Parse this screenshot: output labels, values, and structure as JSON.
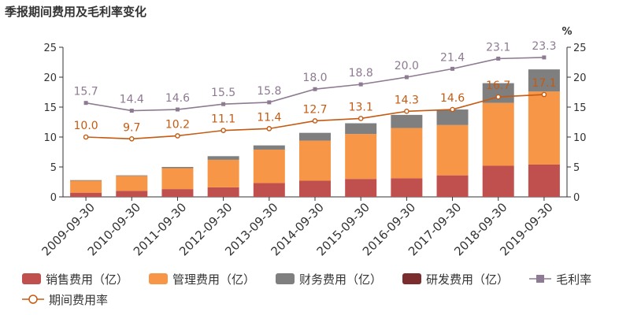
{
  "chart_data": {
    "type": "bar",
    "title": "季报期间费用及毛利率变化",
    "right_unit": "%",
    "categories": [
      "2009-09-30",
      "2010-09-30",
      "2011-09-30",
      "2012-09-30",
      "2013-09-30",
      "2014-09-30",
      "2015-09-30",
      "2016-09-30",
      "2017-09-30",
      "2018-09-30",
      "2019-09-30"
    ],
    "ylim": [
      0,
      25
    ],
    "y_ticks": [
      "0",
      "5",
      "10",
      "15",
      "20",
      "25"
    ],
    "y2lim": [
      0,
      25
    ],
    "y2_ticks": [
      "0",
      "5",
      "10",
      "15",
      "20",
      "25"
    ],
    "stacked_series": [
      {
        "name": "销售费用（亿）",
        "color": "#c0504d",
        "values": [
          0.7,
          1.0,
          1.3,
          1.6,
          2.3,
          2.7,
          3.0,
          3.1,
          3.6,
          5.2,
          5.4
        ]
      },
      {
        "name": "管理费用（亿）",
        "color": "#f79646",
        "values": [
          2.0,
          2.5,
          3.5,
          4.6,
          5.6,
          6.7,
          7.5,
          8.4,
          8.4,
          10.5,
          12.2
        ]
      },
      {
        "name": "财务费用（亿）",
        "color": "#7f7f7f",
        "values": [
          0.1,
          0.1,
          0.2,
          0.6,
          0.7,
          1.3,
          1.8,
          2.2,
          2.6,
          3.3,
          3.7
        ]
      },
      {
        "name": "研发费用（亿）",
        "color": "#7b2c2c",
        "values": [
          0,
          0,
          0,
          0,
          0,
          0,
          0,
          0,
          0,
          0,
          0
        ]
      }
    ],
    "line_series": [
      {
        "name": "毛利率",
        "color": "#8e7a92",
        "marker": "square",
        "values": [
          15.7,
          14.4,
          14.6,
          15.5,
          15.8,
          18.0,
          18.8,
          20.0,
          21.4,
          23.1,
          23.3
        ],
        "labels": [
          "15.7",
          "14.4",
          "14.6",
          "15.5",
          "15.8",
          "18.0",
          "18.8",
          "20.0",
          "21.4",
          "23.1",
          "23.3"
        ]
      },
      {
        "name": "期间费用率",
        "color": "#c55a11",
        "marker": "circle",
        "values": [
          10.0,
          9.7,
          10.2,
          11.1,
          11.4,
          12.7,
          13.1,
          14.3,
          14.6,
          16.7,
          17.1
        ],
        "labels": [
          "10.0",
          "9.7",
          "10.2",
          "11.1",
          "11.4",
          "12.7",
          "13.1",
          "14.3",
          "14.6",
          "16.7",
          "17.1"
        ]
      }
    ],
    "grid": false,
    "legend_position": "bottom"
  }
}
